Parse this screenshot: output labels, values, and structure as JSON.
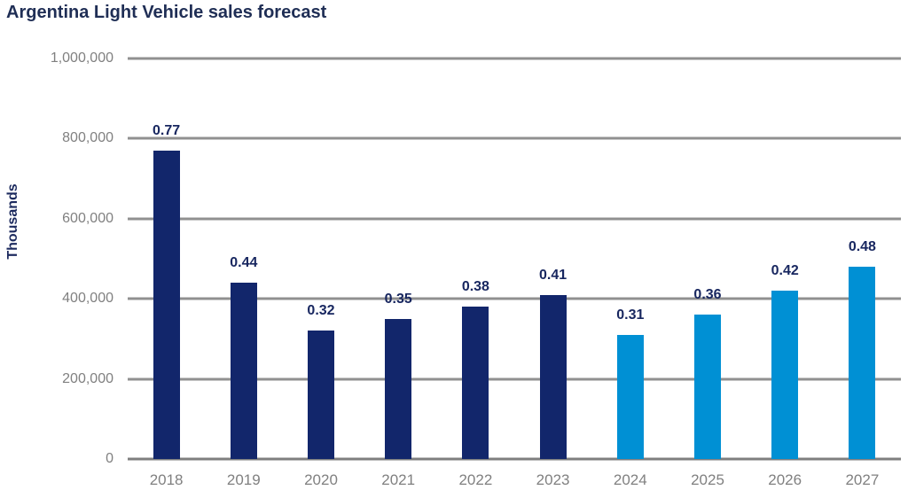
{
  "chart_data": {
    "type": "bar",
    "title": "Argentina Light Vehicle sales forecast",
    "ylabel": "Thousands",
    "xlabel": "",
    "ylim": [
      0,
      1000000
    ],
    "grid": true,
    "legend": false,
    "colors": {
      "historical": "#12266b",
      "forecast": "#0090d4"
    },
    "yticks": [
      {
        "value": 1000000,
        "label": "1,000,000"
      },
      {
        "value": 800000,
        "label": "800,000"
      },
      {
        "value": 600000,
        "label": "600,000"
      },
      {
        "value": 400000,
        "label": "400,000"
      },
      {
        "value": 200000,
        "label": "200,000"
      },
      {
        "value": 0,
        "label": "0"
      }
    ],
    "categories": [
      "2018",
      "2019",
      "2020",
      "2021",
      "2022",
      "2023",
      "2024",
      "2025",
      "2026",
      "2027"
    ],
    "points": [
      {
        "year": "2018",
        "value": 770000,
        "label": "0.77",
        "segment": "historical"
      },
      {
        "year": "2019",
        "value": 440000,
        "label": "0.44",
        "segment": "historical"
      },
      {
        "year": "2020",
        "value": 320000,
        "label": "0.32",
        "segment": "historical"
      },
      {
        "year": "2021",
        "value": 350000,
        "label": "0.35",
        "segment": "historical"
      },
      {
        "year": "2022",
        "value": 380000,
        "label": "0.38",
        "segment": "historical"
      },
      {
        "year": "2023",
        "value": 410000,
        "label": "0.41",
        "segment": "historical"
      },
      {
        "year": "2024",
        "value": 310000,
        "label": "0.31",
        "segment": "forecast"
      },
      {
        "year": "2025",
        "value": 360000,
        "label": "0.36",
        "segment": "forecast"
      },
      {
        "year": "2026",
        "value": 420000,
        "label": "0.42",
        "segment": "forecast"
      },
      {
        "year": "2027",
        "value": 480000,
        "label": "0.48",
        "segment": "forecast"
      }
    ]
  }
}
